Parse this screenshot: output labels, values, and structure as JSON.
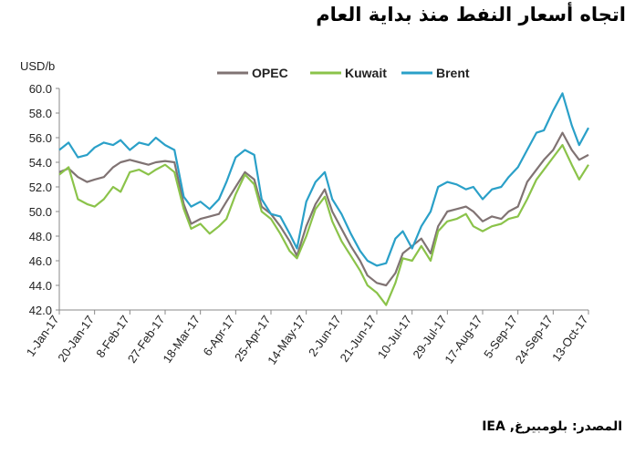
{
  "title": "اتجاه أسعار النفط منذ بداية العام",
  "source": "المصدر: بلومبيرغ, IEA",
  "colors": {
    "OPEC": "#807373",
    "Kuwait": "#8bc34a",
    "Brent": "#2aa0c8"
  },
  "chart_data": {
    "type": "line",
    "title": "اتجاه أسعار النفط منذ بداية العام",
    "ylabel": "USD/b",
    "xlabel": "",
    "ylim": [
      42.0,
      60.0
    ],
    "yticks": [
      "42.0",
      "44.0",
      "46.0",
      "48.0",
      "50.0",
      "52.0",
      "54.0",
      "56.0",
      "58.0",
      "60.0"
    ],
    "xtick_labels": [
      "1-Jan-17",
      "20-Jan-17",
      "8-Feb-17",
      "27-Feb-17",
      "18-Mar-17",
      "6-Apr-17",
      "25-Apr-17",
      "14-May-17",
      "2-Jun-17",
      "21-Jun-17",
      "10-Jul-17",
      "29-Jul-17",
      "17-Aug-17",
      "5-Sep-17",
      "24-Sep-17",
      "13-Oct-17"
    ],
    "legend_position": "top",
    "grid": false,
    "series": [
      {
        "name": "OPEC",
        "x": [
          "1-Jan-17",
          "6-Jan-17",
          "11-Jan-17",
          "16-Jan-17",
          "20-Jan-17",
          "25-Jan-17",
          "30-Jan-17",
          "3-Feb-17",
          "8-Feb-17",
          "13-Feb-17",
          "18-Feb-17",
          "22-Feb-17",
          "27-Feb-17",
          "4-Mar-17",
          "9-Mar-17",
          "13-Mar-17",
          "18-Mar-17",
          "23-Mar-17",
          "28-Mar-17",
          "1-Apr-17",
          "6-Apr-17",
          "11-Apr-17",
          "16-Apr-17",
          "20-Apr-17",
          "25-Apr-17",
          "30-Apr-17",
          "5-May-17",
          "9-May-17",
          "14-May-17",
          "19-May-17",
          "24-May-17",
          "28-May-17",
          "2-Jun-17",
          "7-Jun-17",
          "12-Jun-17",
          "16-Jun-17",
          "21-Jun-17",
          "26-Jun-17",
          "1-Jul-17",
          "5-Jul-17",
          "10-Jul-17",
          "15-Jul-17",
          "20-Jul-17",
          "24-Jul-17",
          "29-Jul-17",
          "3-Aug-17",
          "8-Aug-17",
          "12-Aug-17",
          "17-Aug-17",
          "22-Aug-17",
          "27-Aug-17",
          "31-Aug-17",
          "5-Sep-17",
          "10-Sep-17",
          "15-Sep-17",
          "19-Sep-17",
          "24-Sep-17",
          "29-Sep-17",
          "4-Oct-17",
          "8-Oct-17",
          "13-Oct-17"
        ],
        "values": [
          53.2,
          53.5,
          52.8,
          52.4,
          52.6,
          52.8,
          53.6,
          54.0,
          54.2,
          54.0,
          53.8,
          54.0,
          54.1,
          54.0,
          50.6,
          49.0,
          49.4,
          49.6,
          49.8,
          50.8,
          52.0,
          53.2,
          52.6,
          50.4,
          49.8,
          48.8,
          47.6,
          46.4,
          48.8,
          50.6,
          51.8,
          50.0,
          48.6,
          47.2,
          46.0,
          44.8,
          44.2,
          44.0,
          45.0,
          46.6,
          47.2,
          47.8,
          46.6,
          48.8,
          50.0,
          50.2,
          50.4,
          50.0,
          49.2,
          49.6,
          49.4,
          50.0,
          50.4,
          52.4,
          53.4,
          54.2,
          55.0,
          56.4,
          55.0,
          54.2,
          54.6
        ]
      },
      {
        "name": "Kuwait",
        "x": [
          "1-Jan-17",
          "6-Jan-17",
          "11-Jan-17",
          "16-Jan-17",
          "20-Jan-17",
          "25-Jan-17",
          "30-Jan-17",
          "3-Feb-17",
          "8-Feb-17",
          "13-Feb-17",
          "18-Feb-17",
          "22-Feb-17",
          "27-Feb-17",
          "4-Mar-17",
          "9-Mar-17",
          "13-Mar-17",
          "18-Mar-17",
          "23-Mar-17",
          "28-Mar-17",
          "1-Apr-17",
          "6-Apr-17",
          "11-Apr-17",
          "16-Apr-17",
          "20-Apr-17",
          "25-Apr-17",
          "30-Apr-17",
          "5-May-17",
          "9-May-17",
          "14-May-17",
          "19-May-17",
          "24-May-17",
          "28-May-17",
          "2-Jun-17",
          "7-Jun-17",
          "12-Jun-17",
          "16-Jun-17",
          "21-Jun-17",
          "26-Jun-17",
          "1-Jul-17",
          "5-Jul-17",
          "10-Jul-17",
          "15-Jul-17",
          "20-Jul-17",
          "24-Jul-17",
          "29-Jul-17",
          "3-Aug-17",
          "8-Aug-17",
          "12-Aug-17",
          "17-Aug-17",
          "22-Aug-17",
          "27-Aug-17",
          "31-Aug-17",
          "5-Sep-17",
          "10-Sep-17",
          "15-Sep-17",
          "19-Sep-17",
          "24-Sep-17",
          "29-Sep-17",
          "4-Oct-17",
          "8-Oct-17",
          "13-Oct-17"
        ],
        "values": [
          53.0,
          53.6,
          51.0,
          50.6,
          50.4,
          51.0,
          52.0,
          51.6,
          53.2,
          53.4,
          53.0,
          53.4,
          53.8,
          53.2,
          50.2,
          48.6,
          49.0,
          48.2,
          48.8,
          49.4,
          51.4,
          53.0,
          52.2,
          50.0,
          49.4,
          48.2,
          46.8,
          46.2,
          48.0,
          50.2,
          51.2,
          49.2,
          47.6,
          46.4,
          45.2,
          44.0,
          43.4,
          42.4,
          44.2,
          46.2,
          46.0,
          47.2,
          46.0,
          48.4,
          49.2,
          49.4,
          49.8,
          48.8,
          48.4,
          48.8,
          49.0,
          49.4,
          49.6,
          51.0,
          52.6,
          53.4,
          54.4,
          55.4,
          53.8,
          52.6,
          53.8
        ]
      },
      {
        "name": "Brent",
        "x": [
          "1-Jan-17",
          "6-Jan-17",
          "11-Jan-17",
          "16-Jan-17",
          "20-Jan-17",
          "25-Jan-17",
          "30-Jan-17",
          "3-Feb-17",
          "8-Feb-17",
          "13-Feb-17",
          "18-Feb-17",
          "22-Feb-17",
          "27-Feb-17",
          "4-Mar-17",
          "9-Mar-17",
          "13-Mar-17",
          "18-Mar-17",
          "23-Mar-17",
          "28-Mar-17",
          "1-Apr-17",
          "6-Apr-17",
          "11-Apr-17",
          "16-Apr-17",
          "20-Apr-17",
          "25-Apr-17",
          "30-Apr-17",
          "5-May-17",
          "9-May-17",
          "14-May-17",
          "19-May-17",
          "24-May-17",
          "28-May-17",
          "2-Jun-17",
          "7-Jun-17",
          "12-Jun-17",
          "16-Jun-17",
          "21-Jun-17",
          "26-Jun-17",
          "1-Jul-17",
          "5-Jul-17",
          "10-Jul-17",
          "15-Jul-17",
          "20-Jul-17",
          "24-Jul-17",
          "29-Jul-17",
          "3-Aug-17",
          "8-Aug-17",
          "12-Aug-17",
          "17-Aug-17",
          "22-Aug-17",
          "27-Aug-17",
          "31-Aug-17",
          "5-Sep-17",
          "10-Sep-17",
          "15-Sep-17",
          "19-Sep-17",
          "24-Sep-17",
          "29-Sep-17",
          "4-Oct-17",
          "8-Oct-17",
          "13-Oct-17"
        ],
        "values": [
          55.0,
          55.6,
          54.4,
          54.6,
          55.2,
          55.6,
          55.4,
          55.8,
          55.0,
          55.6,
          55.4,
          56.0,
          55.4,
          55.0,
          51.2,
          50.4,
          50.8,
          50.2,
          51.0,
          52.4,
          54.4,
          55.0,
          54.6,
          51.0,
          49.8,
          49.6,
          48.2,
          47.0,
          50.8,
          52.4,
          53.2,
          51.0,
          49.8,
          48.2,
          46.8,
          46.0,
          45.6,
          45.8,
          47.8,
          48.4,
          47.0,
          48.8,
          50.0,
          52.0,
          52.4,
          52.2,
          51.8,
          52.0,
          51.0,
          51.8,
          52.0,
          52.8,
          53.6,
          55.0,
          56.4,
          56.6,
          58.2,
          59.6,
          57.0,
          55.4,
          56.8
        ]
      }
    ]
  }
}
